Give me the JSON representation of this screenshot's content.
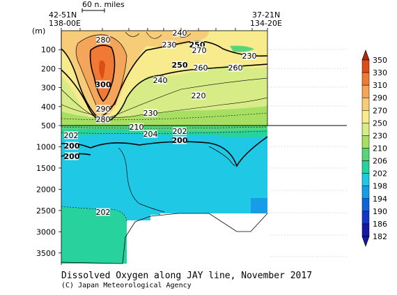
{
  "chart_data": {
    "type": "heatmap",
    "title": "Dissolved Oxygen along JAY line, November 2017",
    "credit": "(C) Japan Meteorological Agency",
    "ylabel": "(m)",
    "scale_label": "60 n. miles",
    "station_left": [
      "42-51N",
      "138-00E"
    ],
    "station_right": [
      "37-21N",
      "134-20E"
    ],
    "y_ticks_upper": [
      "100",
      "200",
      "300",
      "400",
      "500"
    ],
    "y_ticks_lower": [
      "1000",
      "1500",
      "2000",
      "2500",
      "3000",
      "3500"
    ],
    "upper_depth_range": [
      0,
      500
    ],
    "lower_depth_range": [
      500,
      3750
    ],
    "colorbar": {
      "levels": [
        "350",
        "330",
        "310",
        "290",
        "270",
        "250",
        "230",
        "210",
        "206",
        "202",
        "198",
        "194",
        "190",
        "186",
        "182"
      ],
      "colors": [
        "#b22a0b",
        "#dc4d17",
        "#f07a33",
        "#f4a55a",
        "#f7cc79",
        "#f7eb8e",
        "#d7ec86",
        "#a7df62",
        "#58d47d",
        "#27d29c",
        "#1fc9e6",
        "#179de8",
        "#1363d8",
        "#1536c4",
        "#1418a2"
      ]
    },
    "contour_labels": [
      {
        "text": "240",
        "style": "thin"
      },
      {
        "text": "280",
        "style": "thin"
      },
      {
        "text": "230",
        "style": "thin"
      },
      {
        "text": "250",
        "style": "bold"
      },
      {
        "text": "270",
        "style": "thin"
      },
      {
        "text": "250",
        "style": "bold"
      },
      {
        "text": "260",
        "style": "thin"
      },
      {
        "text": "260",
        "style": "thin"
      },
      {
        "text": "230",
        "style": "thin"
      },
      {
        "text": "300",
        "style": "bold"
      },
      {
        "text": "240",
        "style": "thin"
      },
      {
        "text": "220",
        "style": "thin"
      },
      {
        "text": "290",
        "style": "thin"
      },
      {
        "text": "230",
        "style": "thin"
      },
      {
        "text": "280",
        "style": "thin"
      },
      {
        "text": "210",
        "style": "thin"
      },
      {
        "text": "202",
        "style": "thin"
      },
      {
        "text": "204",
        "style": "thin"
      },
      {
        "text": "202",
        "style": "thin"
      },
      {
        "text": "200",
        "style": "bold"
      },
      {
        "text": "200",
        "style": "bold"
      },
      {
        "text": "200",
        "style": "bold"
      },
      {
        "text": "202",
        "style": "thin"
      }
    ]
  }
}
